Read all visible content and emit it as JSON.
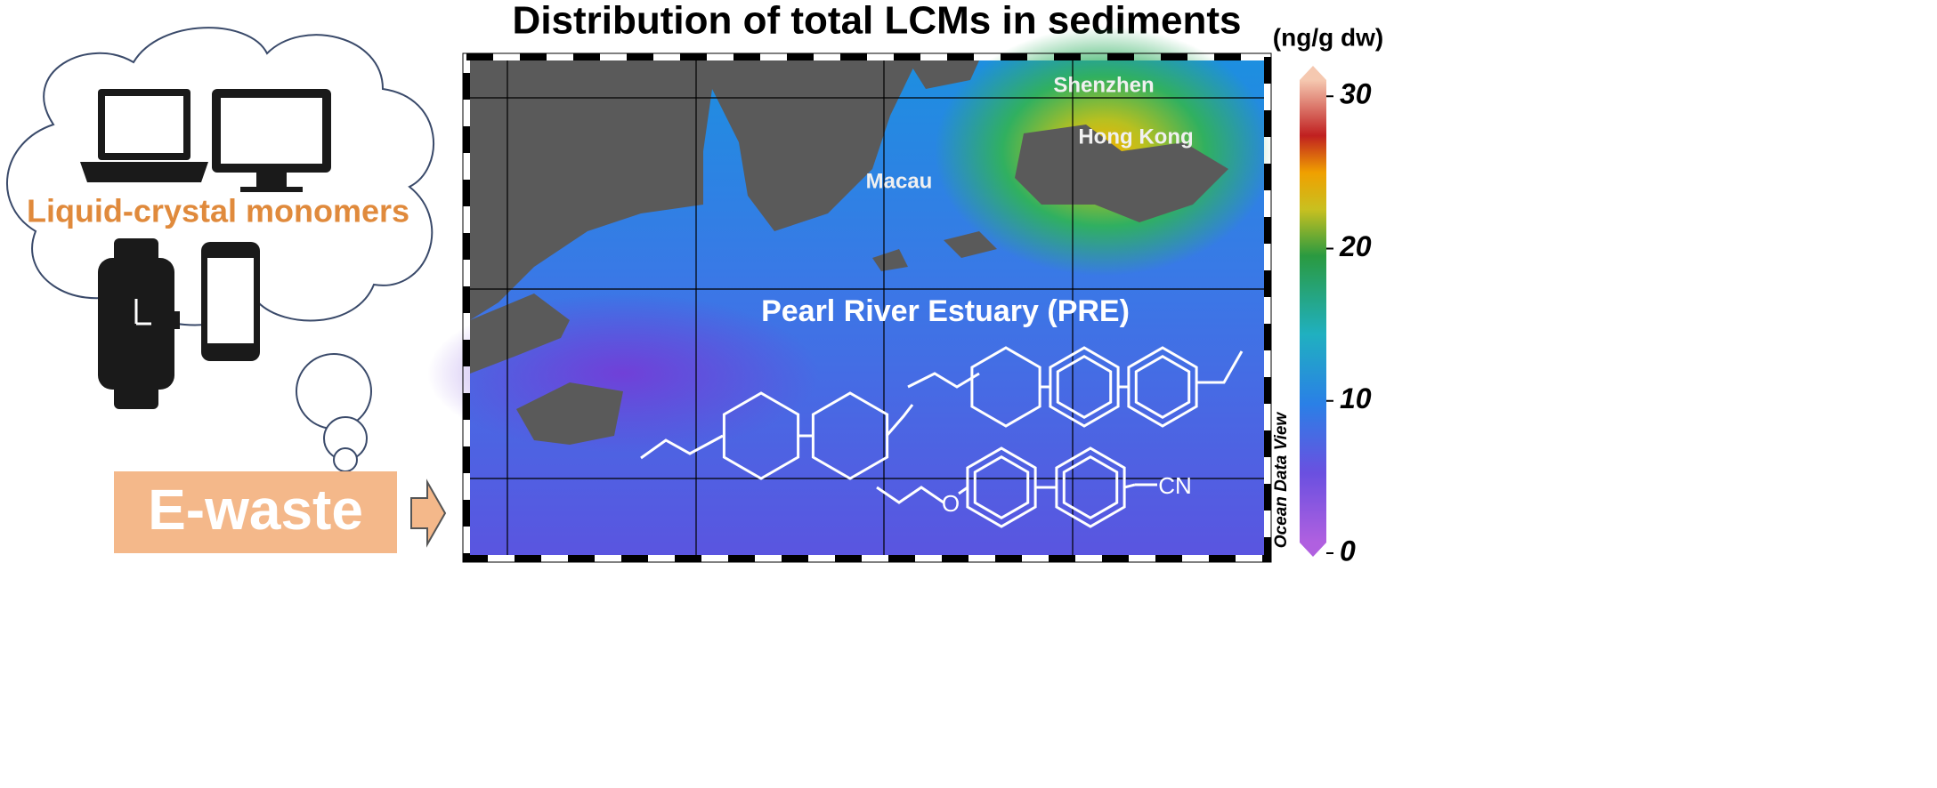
{
  "title": "Distribution of total LCMs in sediments",
  "unit": "(ng/g dw)",
  "cloud": {
    "label": "Liquid-crystal monomers"
  },
  "source": {
    "label": "E-waste"
  },
  "map": {
    "places": [
      "Shenzhen",
      "Hong Kong",
      "Macau"
    ],
    "region": "Pearl River Estuary (PRE)",
    "credit": "Ocean Data View",
    "atoms": [
      "O",
      "CN"
    ]
  },
  "colorbar": {
    "range": [
      0,
      32
    ],
    "ticks": [
      0,
      10,
      20,
      30
    ]
  }
}
